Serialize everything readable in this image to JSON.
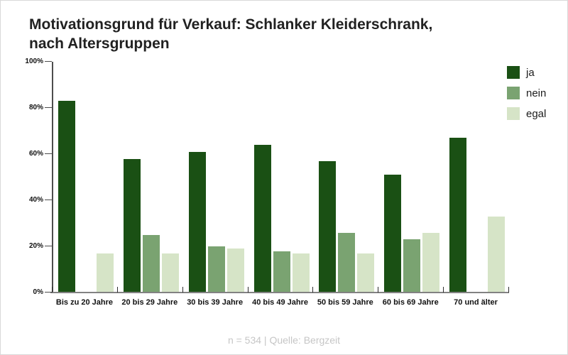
{
  "title": {
    "line1": "Motivationsgrund für Verkauf: Schlanker Kleiderschrank,",
    "line2": "nach Altersgruppen"
  },
  "footer": "n = 534 | Quelle: Bergzeit",
  "legend": [
    {
      "label": "ja",
      "color": "#1a5014"
    },
    {
      "label": "nein",
      "color": "#7aa371"
    },
    {
      "label": "egal",
      "color": "#d6e4c7"
    }
  ],
  "colors": {
    "ja": "#1a5014",
    "nein": "#7aa371",
    "egal": "#d6e4c7",
    "axis": "#4d4d4d",
    "baseline": "#828282",
    "title_text": "#212121",
    "footer_text": "#c6c6c6"
  },
  "chart_data": {
    "type": "bar",
    "title": "Motivationsgrund für Verkauf: Schlanker Kleiderschrank, nach Altersgruppen",
    "xlabel": "",
    "ylabel": "",
    "categories": [
      "Bis zu 20 Jahre",
      "20 bis 29 Jahre",
      "30 bis 39 Jahre",
      "40 bis 49 Jahre",
      "50 bis 59 Jahre",
      "60 bis 69 Jahre",
      "70 und älter"
    ],
    "series": [
      {
        "name": "ja",
        "color": "#1a5014",
        "values": [
          83,
          58,
          61,
          64,
          57,
          51,
          67
        ]
      },
      {
        "name": "nein",
        "color": "#7aa371",
        "values": [
          0,
          25,
          20,
          18,
          26,
          23,
          0
        ]
      },
      {
        "name": "egal",
        "color": "#d6e4c7",
        "values": [
          17,
          17,
          19,
          17,
          17,
          26,
          33
        ]
      }
    ],
    "ylim": [
      0,
      100
    ],
    "ytick_labels": [
      "0%",
      "20%",
      "40%",
      "60%",
      "80%",
      "100%"
    ],
    "ytick_values": [
      0,
      20,
      40,
      60,
      80,
      100
    ],
    "unit": "%",
    "grid": false,
    "legend_position": "top-right",
    "note": "n = 534 | Quelle: Bergzeit"
  }
}
